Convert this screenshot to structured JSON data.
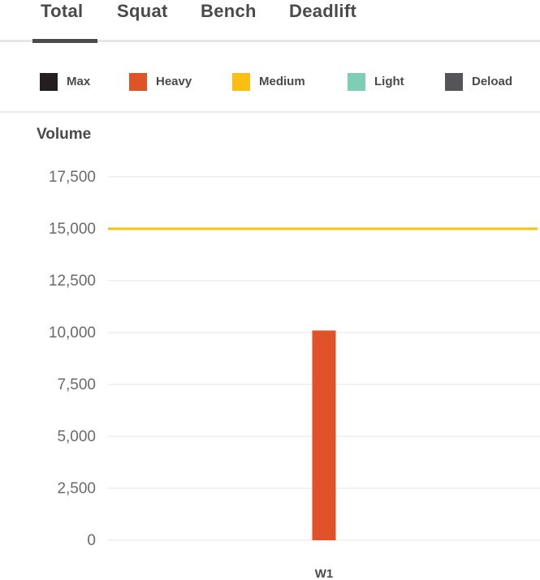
{
  "tabs": [
    {
      "label": "Total",
      "active": true
    },
    {
      "label": "Squat",
      "active": false
    },
    {
      "label": "Bench",
      "active": false
    },
    {
      "label": "Deadlift",
      "active": false
    }
  ],
  "legend": [
    {
      "label": "Max",
      "color": "#231f20"
    },
    {
      "label": "Heavy",
      "color": "#e05227"
    },
    {
      "label": "Medium",
      "color": "#fbbf14"
    },
    {
      "label": "Light",
      "color": "#7fcdb5"
    },
    {
      "label": "Deload",
      "color": "#555558"
    }
  ],
  "chart_data": {
    "type": "bar",
    "ylabel": "Volume",
    "ylim": [
      0,
      17500
    ],
    "yticks": [
      "17,500",
      "15,000",
      "12,500",
      "10,000",
      "7,500",
      "5,000",
      "2,500",
      "0"
    ],
    "categories": [
      "W1"
    ],
    "series": [
      {
        "name": "Heavy",
        "values": [
          10100
        ],
        "color": "#e05227"
      }
    ],
    "reference_line": {
      "value": 15000,
      "color": "#fbbf14"
    },
    "grid": true
  }
}
